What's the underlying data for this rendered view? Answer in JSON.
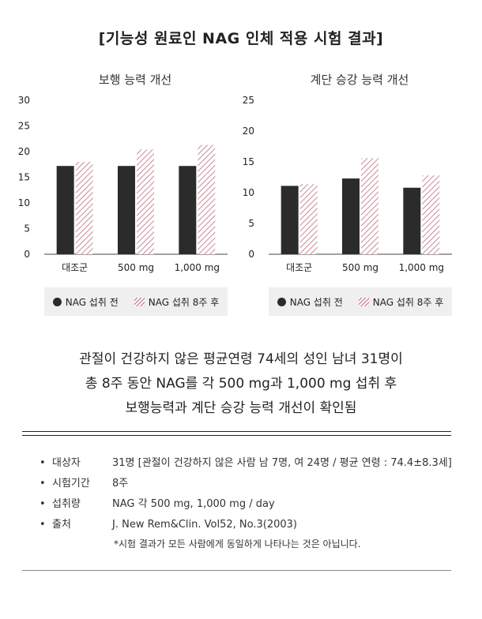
{
  "title": "[기능성 원료인 NAG 인체 적용 시험 결과]",
  "chart_data": [
    {
      "type": "bar",
      "title": "보행 능력 개선",
      "categories": [
        "대조군",
        "500 mg",
        "1,000 mg"
      ],
      "ylim": [
        0,
        30
      ],
      "yticks": [
        0,
        5,
        10,
        15,
        20,
        25,
        30
      ],
      "grid": false,
      "series": [
        {
          "name": "NAG 섭취 전",
          "values": [
            17.2,
            17.2,
            17.2
          ],
          "color": "#2b2b2b"
        },
        {
          "name": "NAG 섭취 8주 후",
          "values": [
            18.0,
            20.4,
            21.3
          ],
          "color": "#c98a94",
          "pattern": "hatched"
        }
      ]
    },
    {
      "type": "bar",
      "title": "계단 승강 능력 개선",
      "categories": [
        "대조군",
        "500 mg",
        "1,000 mg"
      ],
      "ylim": [
        0,
        25
      ],
      "yticks": [
        0,
        5,
        10,
        15,
        20,
        25
      ],
      "grid": false,
      "series": [
        {
          "name": "NAG 섭취 전",
          "values": [
            11.1,
            12.3,
            10.8
          ],
          "color": "#2b2b2b"
        },
        {
          "name": "NAG 섭취 8주 후",
          "values": [
            11.4,
            15.6,
            12.8
          ],
          "color": "#c98a94",
          "pattern": "hatched"
        }
      ]
    }
  ],
  "legend": {
    "before": "NAG 섭취 전",
    "after": "NAG 섭취 8주 후"
  },
  "summary": {
    "line1": "관절이 건강하지 않은 평균연령 74세의 성인 남녀 31명이",
    "line2": "총 8주 동안 NAG를 각 500 mg과 1,000 mg 섭취 후",
    "line3": "보행능력과 계단 승강 능력 개선이 확인됨"
  },
  "info": [
    {
      "bullet": "•",
      "label": "대상자",
      "value": "31명 [관절이 건강하지 않은 사람 남 7명, 여 24명 / 평균 연령 : 74.4±8.3세]"
    },
    {
      "bullet": "•",
      "label": "시험기간",
      "value": "8주"
    },
    {
      "bullet": "•",
      "label": "섭취량",
      "value": "NAG 각 500 mg, 1,000 mg / day"
    },
    {
      "bullet": "•",
      "label": "출처",
      "value": "J. New Rem&Clin. Vol52, No.3(2003)"
    }
  ],
  "note": "*시험 결과가 모든 사람에게 동일하게 나타나는 것은 아닙니다."
}
